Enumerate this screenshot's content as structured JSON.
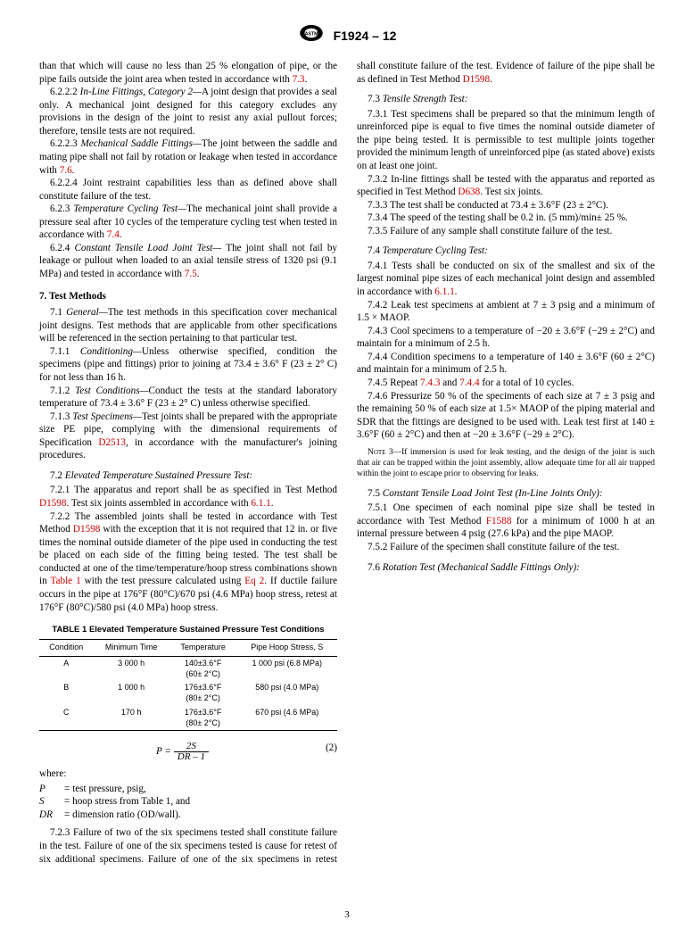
{
  "header": {
    "designation": "F1924 – 12"
  },
  "col1": {
    "cont": "than that which will cause no less than 25 % elongation of pipe, or the pipe fails outside the joint area when tested in accordance with ",
    "cont_x": "7.3",
    "c6222_n": "6.2.2.2 ",
    "c6222_t": "In-Line Fittings, Category 2—",
    "c6222_b": "A joint design that provides a seal only. A mechanical joint designed for this category excludes any provisions in the design of the joint to resist any axial pullout forces; therefore, tensile tests are not required.",
    "c6223_n": "6.2.2.3 ",
    "c6223_t": "Mechanical Saddle Fittings—",
    "c6223_b1": "The joint between the saddle and mating pipe shall not fail by rotation or leakage when tested in accordance with ",
    "c6223_x": "7.6",
    "c6224_n": "6.2.2.4 ",
    "c6224_b": "Joint restraint capabilities less than as defined above shall constitute failure of the test.",
    "c623_n": "6.2.3 ",
    "c623_t": "Temperature Cycling Test—",
    "c623_b1": "The mechanical joint shall provide a pressure seal after 10 cycles of the temperature cycling test when tested in accordance with ",
    "c623_x": "7.4",
    "c624_n": "6.2.4 ",
    "c624_t": "Constant Tensile Load Joint Test—",
    "c624_b1": " The joint shall not fail by leakage or pullout when loaded to an axial tensile stress of 1320 psi (9.1 MPa) and tested in accordance with ",
    "c624_x": "7.5",
    "s7": "7. Test Methods",
    "c71_n": "7.1 ",
    "c71_t": "General—",
    "c71_b": "The test methods in this specification cover mechanical joint designs. Test methods that are applicable from other specifications will be referenced in the section pertaining to that particular test.",
    "c711_n": "7.1.1 ",
    "c711_t": "Conditioning—",
    "c711_b": "Unless otherwise specified, condition the specimens (pipe and fittings) prior to joining at 73.4 ± 3.6° F (23 ± 2° C) for not less than 16 h.",
    "c712_n": "7.1.2 ",
    "c712_t": "Test Conditions—",
    "c712_b": "Conduct the tests at the standard laboratory temperature of 73.4 ± 3.6° F (23 ± 2° C) unless otherwise specified.",
    "c713_n": "7.1.3 ",
    "c713_t": "Test Specimens—",
    "c713_b1": "Test joints shall be prepared with the appropriate size PE pipe, complying with the dimensional requirements of Specification ",
    "c713_x": "D2513",
    "c713_b2": ", in accordance with the manufacturer's joining procedures.",
    "c72_n": "7.2 ",
    "c72_t": "Elevated Temperature Sustained Pressure Test:",
    "c721_n": "7.2.1 ",
    "c721_b1": "The apparatus and report shall be as specified in Test Method ",
    "c721_x1": "D1598",
    "c721_b2": ". Test six joints assembled in accordance with ",
    "c721_x2": "6.1.1",
    "c722_n": "7.2.2 ",
    "c722_b1": "The assembled joints shall be tested in accordance with Test Method ",
    "c722_x1": "D1598",
    "c722_b2": " with the exception that it is not required that 12 in. or five times the nominal outside diameter of the pipe used in conducting the test be placed on each side of the fitting being tested. The test shall be conducted at one of the time/temperature/hoop stress combinations shown in ",
    "c722_x2": "Table 1",
    "c722_b3": " with the test pressure calculated using ",
    "c722_x3": "Eq 2",
    "c722_b4": ". If ductile failure occurs in the pipe at 176°F (80°C)/670 psi (4.6 MPa) hoop stress, retest at 176°F (80°C)/580 psi (4.0 MPa) hoop stress.",
    "table1": {
      "title": "TABLE 1 Elevated Temperature Sustained Pressure Test Conditions",
      "headers": [
        "Condition",
        "Minimum Time",
        "Temperature",
        "Pipe Hoop Stress, S"
      ],
      "rows": [
        [
          "A",
          "3 000 h",
          "140±3.6°F\n(60± 2°C)",
          "1 000 psi (6.8 MPa)"
        ],
        [
          "B",
          "1 000 h",
          "176±3.6°F\n(80± 2°C)",
          "580 psi (4.0 MPa)"
        ],
        [
          "C",
          "170 h",
          "176±3.6°F\n(80± 2°C)",
          "670 psi (4.6 MPa)"
        ]
      ]
    }
  },
  "col2": {
    "eq": {
      "lhs": "P",
      "num": "2S",
      "den": "DR – 1",
      "num_label": "(2)"
    },
    "where": "where:",
    "where_rows": [
      [
        "P",
        "= test pressure, psig,"
      ],
      [
        "S",
        "= hoop stress from Table 1, and"
      ],
      [
        "DR",
        "= dimension ratio (OD/wall)."
      ]
    ],
    "c723_n": "7.2.3 ",
    "c723_b1": "Failure of two of the six specimens tested shall constitute failure in the test. Failure of one of the six specimens tested is cause for retest of six additional specimens. Failure of one of the six specimens in retest shall constitute failure of the test. Evidence of failure of the pipe shall be as defined in Test Method ",
    "c723_x": "D1598",
    "c73_n": "7.3 ",
    "c73_t": "Tensile Strength Test:",
    "c731_n": "7.3.1 ",
    "c731_b": "Test specimens shall be prepared so that the minimum length of unreinforced pipe is equal to five times the nominal outside diameter of the pipe being tested. It is permissible to test multiple joints together provided the minimum length of unreinforced pipe (as stated above) exists on at least one joint.",
    "c732_n": "7.3.2 ",
    "c732_b1": "In-line fittings shall be tested with the apparatus and reported as specified in Test Method ",
    "c732_x": "D638",
    "c732_b2": ". Test six joints.",
    "c733_n": "7.3.3 ",
    "c733_b": "The test shall be conducted at 73.4 ± 3.6°F (23 ± 2°C).",
    "c734_n": "7.3.4 ",
    "c734_b": "The speed of the testing shall be 0.2 in. (5 mm)/min± 25 %.",
    "c735_n": "7.3.5 ",
    "c735_b": "Failure of any sample shall constitute failure of the test.",
    "c74_n": "7.4 ",
    "c74_t": "Temperature Cycling Test:",
    "c741_n": "7.4.1 ",
    "c741_b1": "Tests shall be conducted on six of the smallest and six of the largest nominal pipe sizes of each mechanical joint design and assembled in accordance with ",
    "c741_x": "6.1.1",
    "c742_n": "7.4.2 ",
    "c742_b": "Leak test specimens at ambient at 7 ± 3 psig and a minimum of 1.5 × MAOP.",
    "c743_n": "7.4.3 ",
    "c743_b": "Cool specimens to a temperature of −20 ± 3.6°F (−29 ± 2°C) and maintain for a minimum of 2.5 h.",
    "c744_n": "7.4.4 ",
    "c744_b": "Condition specimens to a temperature of 140 ± 3.6°F (60 ± 2°C) and maintain for a minimum of 2.5 h.",
    "c745_n": "7.4.5 ",
    "c745_b1": "Repeat ",
    "c745_x1": "7.4.3",
    "c745_b2": " and ",
    "c745_x2": "7.4.4",
    "c745_b3": " for a total of 10 cycles.",
    "c746_n": "7.4.6 ",
    "c746_b": "Pressurize 50 % of the speciments of each size at 7 ± 3 psig and the remaining 50 % of each size at 1.5× MAOP of the piping material and SDR that the fittings are designed to be used with. Leak test first at 140 ± 3.6°F (60 ± 2°C) and then at −20 ± 3.6°F (−29 ± 2°C).",
    "note3_l": "Note 3—",
    "note3_b": "If immersion is used for leak testing, and the design of the joint is such that air can be trapped within the joint assembly, allow adequate time for all air trapped within the joint to escape prior to observing for leaks.",
    "c75_n": "7.5 ",
    "c75_t": "Constant Tensile Load Joint Test (In-Line Joints Only):",
    "c751_n": "7.5.1 ",
    "c751_b1": "One specimen of each nominal pipe size shall be tested in accordance with Test Method ",
    "c751_x": "F1588",
    "c751_b2": " for a minimum of 1000 h at an internal pressure between 4 psig (27.6 kPa) and the pipe MAOP.",
    "c752_n": "7.5.2 ",
    "c752_b": "Failure of the specimen shall constitute failure of the test.",
    "c76_n": "7.6 ",
    "c76_t": "Rotation Test (Mechanical Saddle Fittings Only):"
  },
  "pagenum": "3"
}
